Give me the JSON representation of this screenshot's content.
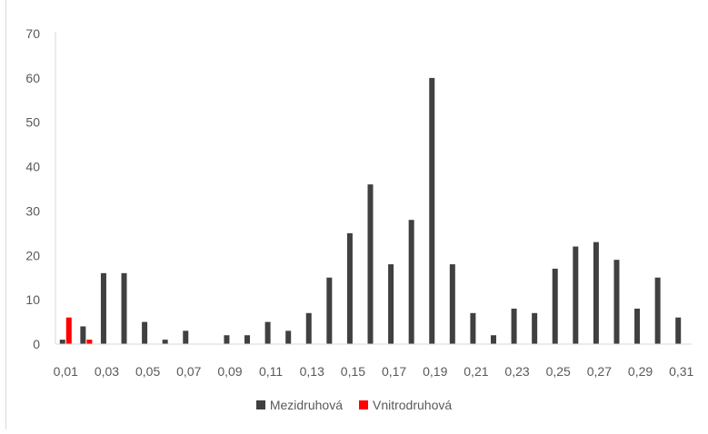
{
  "chart_data": {
    "type": "bar",
    "categories": [
      "0,01",
      "0,02",
      "0,03",
      "0,04",
      "0,05",
      "0,06",
      "0,07",
      "0,08",
      "0,09",
      "0,10",
      "0,11",
      "0,12",
      "0,13",
      "0,14",
      "0,15",
      "0,16",
      "0,17",
      "0,18",
      "0,19",
      "0,20",
      "0,21",
      "0,22",
      "0,23",
      "0,24",
      "0,25",
      "0,26",
      "0,27",
      "0,28",
      "0,29",
      "0,30",
      "0,31"
    ],
    "x_tick_labels": [
      "0,01",
      "0,03",
      "0,05",
      "0,07",
      "0,09",
      "0,11",
      "0,13",
      "0,15",
      "0,17",
      "0,19",
      "0,21",
      "0,23",
      "0,25",
      "0,27",
      "0,29",
      "0,31"
    ],
    "series": [
      {
        "name": "Mezidruhová",
        "color": "#404040",
        "values": [
          1,
          4,
          16,
          16,
          5,
          1,
          3,
          0,
          2,
          2,
          5,
          3,
          7,
          15,
          25,
          36,
          18,
          28,
          60,
          18,
          7,
          2,
          8,
          7,
          17,
          22,
          23,
          19,
          8,
          15,
          6
        ]
      },
      {
        "name": "Vnitrodruhová",
        "color": "#ff0000",
        "values": [
          6,
          1,
          0,
          0,
          0,
          0,
          0,
          0,
          0,
          0,
          0,
          0,
          0,
          0,
          0,
          0,
          0,
          0,
          0,
          0,
          0,
          0,
          0,
          0,
          0,
          0,
          0,
          0,
          0,
          0,
          0
        ]
      }
    ],
    "ylim": [
      0,
      70
    ],
    "y_ticks": [
      0,
      10,
      20,
      30,
      40,
      50,
      60,
      70
    ],
    "grid": false,
    "legend_position": "bottom"
  }
}
